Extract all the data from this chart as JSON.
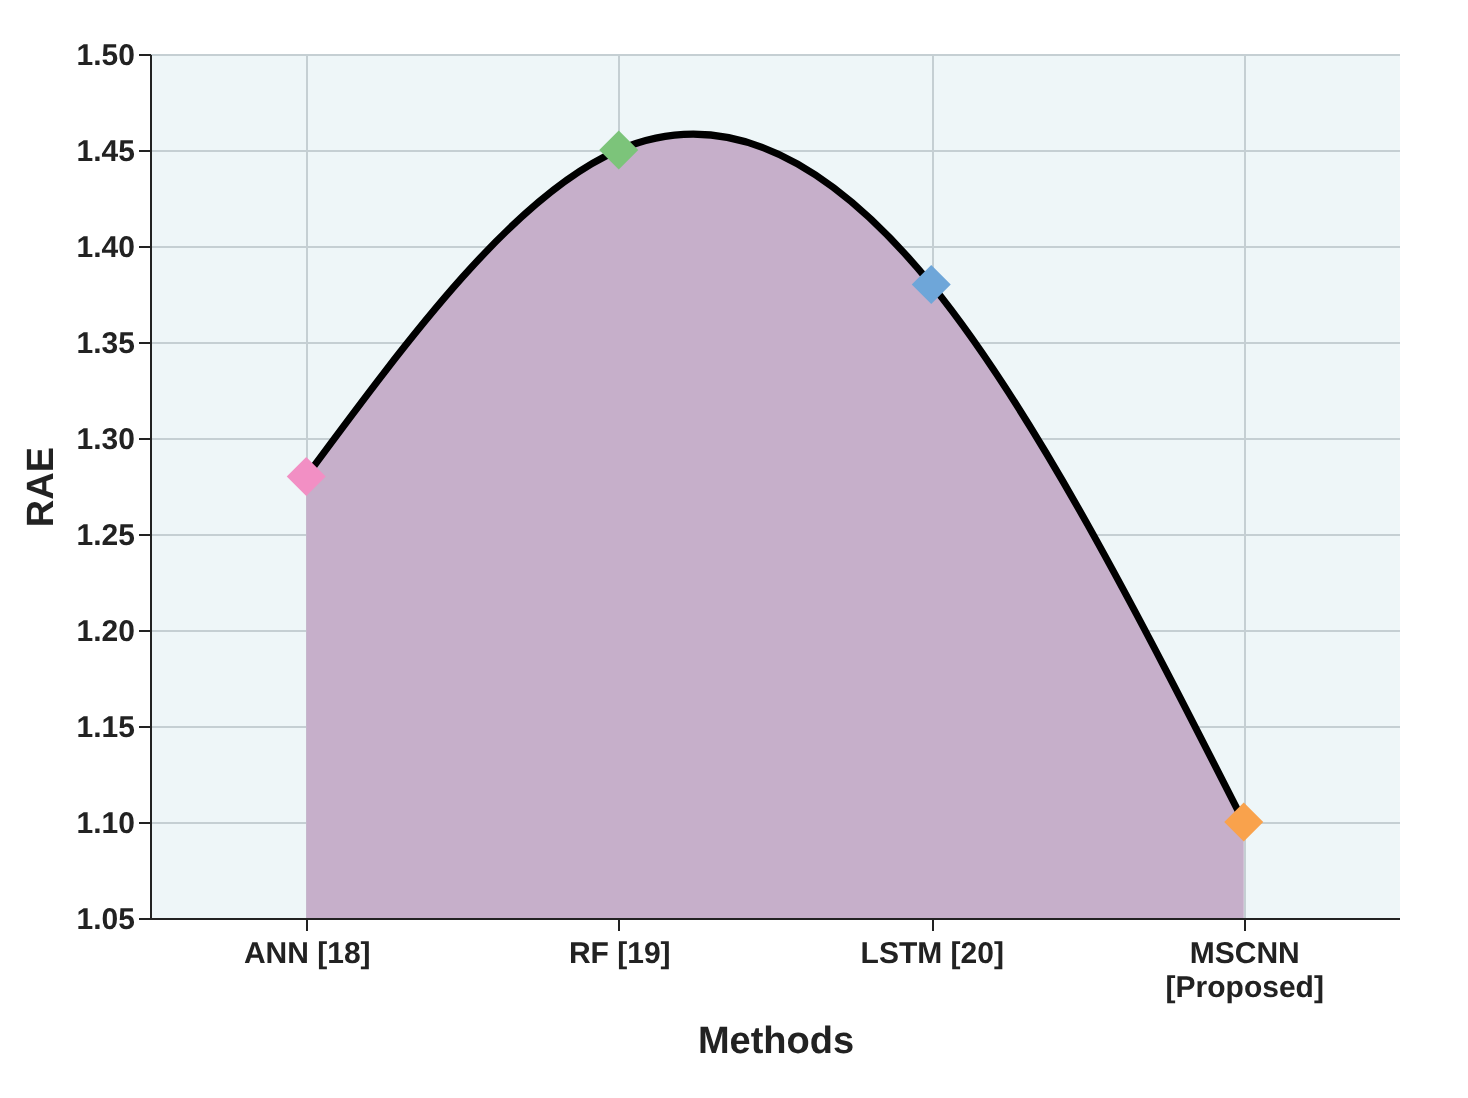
{
  "chart_data": {
    "type": "area",
    "xlabel": "Methods",
    "ylabel": "RAE",
    "categories": [
      "ANN [18]",
      "RF [19]",
      "LSTM [20]",
      "MSCNN\n[Proposed]"
    ],
    "series": [
      {
        "color": "#c6afca",
        "values": [
          1.28,
          1.45,
          1.38,
          1.1
        ]
      }
    ],
    "colors": [
      "#f28fc4",
      "#7cc47a",
      "#6ea6d9",
      "#f9a24c"
    ],
    "ylim": [
      1.05,
      1.5
    ],
    "yticks": [
      1.05,
      {
        "value": 1.1,
        "label": "1.10"
      },
      1.15,
      {
        "value": 1.2,
        "label": "1.20"
      },
      1.25,
      {
        "value": 1.3,
        "label": "1.30"
      },
      1.35,
      {
        "value": 1.4,
        "label": "1.40"
      },
      1.45,
      {
        "value": 1.5,
        "label": "1.50"
      }
    ],
    "grid": true,
    "marker": "diamond",
    "line_style": "solid"
  }
}
